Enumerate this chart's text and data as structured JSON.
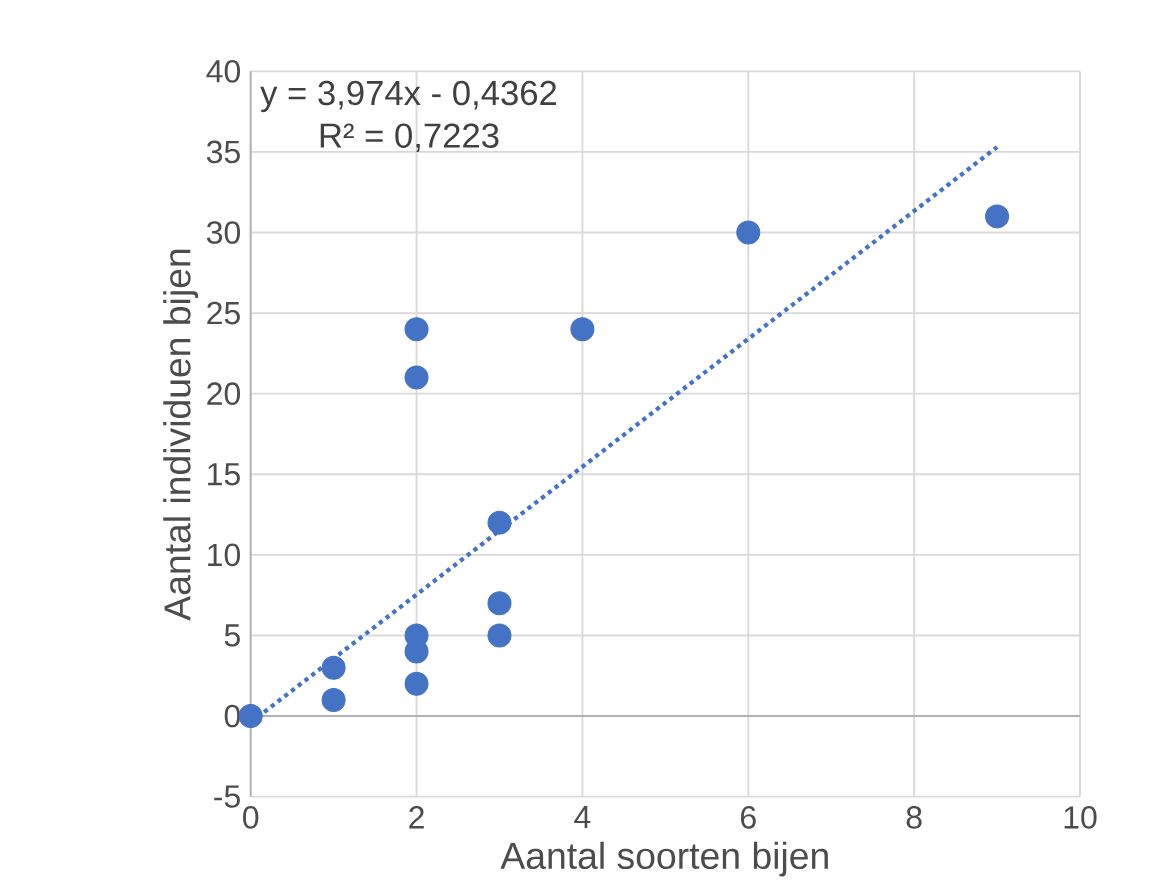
{
  "chart_data": {
    "type": "scatter",
    "xlabel": "Aantal soorten bijen",
    "ylabel": "Aantal individuen bijen",
    "xlim": [
      0,
      10
    ],
    "xticks": [
      0,
      2,
      4,
      6,
      8,
      10
    ],
    "ylim": [
      -5,
      40
    ],
    "yticks": [
      -5,
      0,
      5,
      10,
      15,
      20,
      25,
      30,
      35,
      40
    ],
    "grid": true,
    "series": [
      {
        "marker": "circle",
        "color": "#4472c4",
        "x": [
          0,
          1,
          1,
          2,
          2,
          2,
          2,
          2,
          3,
          3,
          3,
          4,
          6,
          9
        ],
        "values": [
          0,
          1,
          3,
          2,
          4,
          5,
          21,
          24,
          5,
          7,
          12,
          24,
          30,
          31
        ]
      },
      {
        "type": "line",
        "marker": "none",
        "color": "#4472c4",
        "line_style": "dotted",
        "x": [
          0,
          9
        ],
        "values": [
          -0.4,
          35.3
        ]
      }
    ],
    "annotations": [
      "y = 3,974x - 0,4362",
      "R² = 0,7223"
    ]
  }
}
